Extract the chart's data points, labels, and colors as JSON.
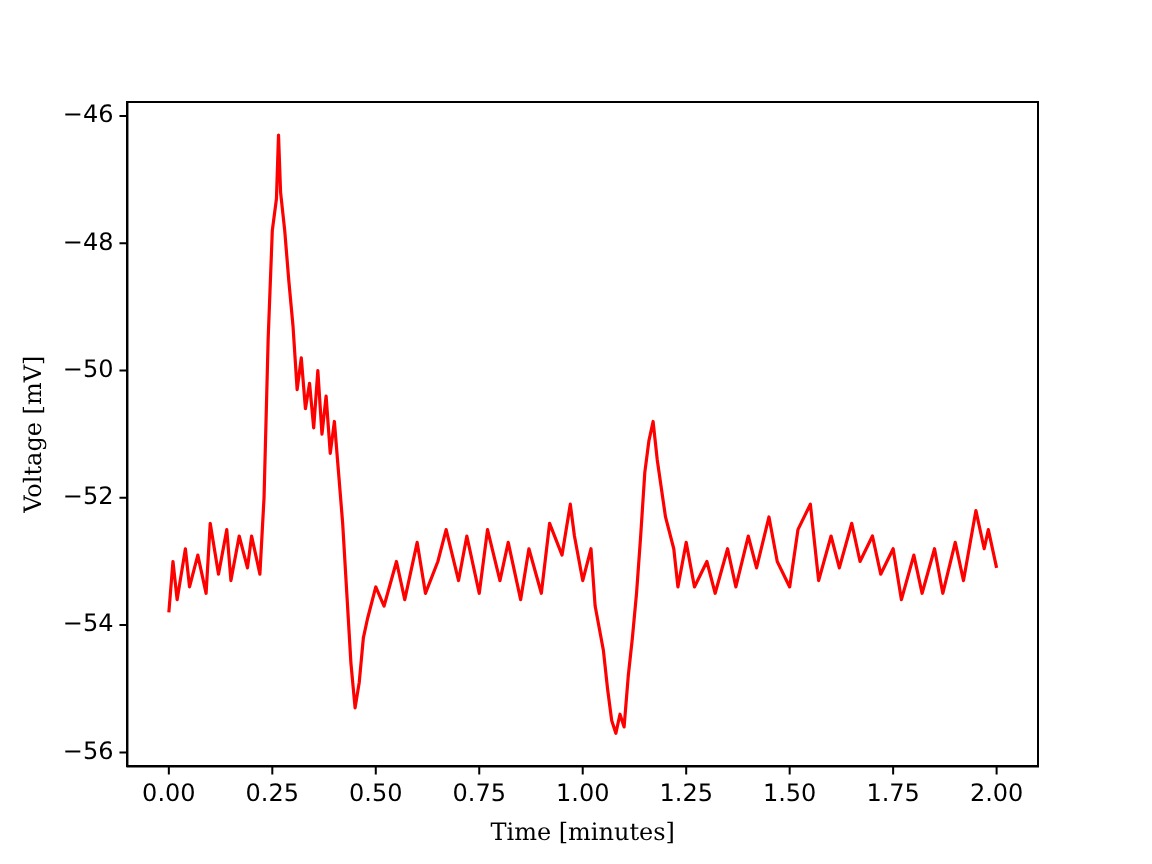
{
  "chart_data": {
    "type": "line",
    "xlabel": "Time [minutes]",
    "ylabel": "Voltage [mV]",
    "xlim": [
      -0.1,
      2.1
    ],
    "ylim": [
      -56.22,
      -45.78
    ],
    "xticks": [
      {
        "value": 0,
        "label": "0.00"
      },
      {
        "value": 0.25,
        "label": "0.25"
      },
      {
        "value": 0.5,
        "label": "0.50"
      },
      {
        "value": 0.75,
        "label": "0.75"
      },
      {
        "value": 1,
        "label": "1.00"
      },
      {
        "value": 1.25,
        "label": "1.25"
      },
      {
        "value": 1.5,
        "label": "1.50"
      },
      {
        "value": 1.75,
        "label": "1.75"
      },
      {
        "value": 2,
        "label": "2.00"
      }
    ],
    "yticks": [
      {
        "value": -56,
        "label": "−56"
      },
      {
        "value": -54,
        "label": "−54"
      },
      {
        "value": -52,
        "label": "−52"
      },
      {
        "value": -50,
        "label": "−50"
      },
      {
        "value": -48,
        "label": "−48"
      },
      {
        "value": -46,
        "label": "−46"
      }
    ],
    "grid": false,
    "legend": false,
    "marker": "none",
    "line_style": "solid",
    "series": [
      {
        "color": "#ff0000",
        "x": [
          0,
          0.01,
          0.02,
          0.04,
          0.05,
          0.07,
          0.09,
          0.1,
          0.12,
          0.14,
          0.15,
          0.17,
          0.19,
          0.2,
          0.22,
          0.23,
          0.24,
          0.25,
          0.26,
          0.265,
          0.27,
          0.28,
          0.29,
          0.3,
          0.31,
          0.32,
          0.33,
          0.34,
          0.35,
          0.36,
          0.37,
          0.38,
          0.39,
          0.4,
          0.41,
          0.42,
          0.43,
          0.44,
          0.45,
          0.46,
          0.47,
          0.48,
          0.5,
          0.52,
          0.55,
          0.57,
          0.6,
          0.62,
          0.65,
          0.67,
          0.7,
          0.72,
          0.75,
          0.77,
          0.8,
          0.82,
          0.85,
          0.87,
          0.9,
          0.92,
          0.95,
          0.97,
          0.98,
          1.0,
          1.02,
          1.03,
          1.05,
          1.06,
          1.07,
          1.08,
          1.09,
          1.1,
          1.11,
          1.12,
          1.13,
          1.14,
          1.15,
          1.16,
          1.17,
          1.18,
          1.2,
          1.22,
          1.23,
          1.25,
          1.27,
          1.3,
          1.32,
          1.35,
          1.37,
          1.4,
          1.42,
          1.45,
          1.47,
          1.5,
          1.52,
          1.55,
          1.57,
          1.6,
          1.62,
          1.65,
          1.67,
          1.7,
          1.72,
          1.75,
          1.77,
          1.8,
          1.82,
          1.85,
          1.87,
          1.9,
          1.92,
          1.95,
          1.97,
          1.98,
          2.0
        ],
        "values": [
          -53.8,
          -53.0,
          -53.6,
          -52.8,
          -53.4,
          -52.9,
          -53.5,
          -52.4,
          -53.2,
          -52.5,
          -53.3,
          -52.6,
          -53.1,
          -52.6,
          -53.2,
          -52.0,
          -49.5,
          -47.8,
          -47.3,
          -46.3,
          -47.2,
          -47.8,
          -48.6,
          -49.3,
          -50.3,
          -49.8,
          -50.6,
          -50.2,
          -50.9,
          -50.0,
          -51.0,
          -50.4,
          -51.3,
          -50.8,
          -51.6,
          -52.4,
          -53.5,
          -54.6,
          -55.3,
          -54.9,
          -54.2,
          -53.9,
          -53.4,
          -53.7,
          -53.0,
          -53.6,
          -52.7,
          -53.5,
          -53.0,
          -52.5,
          -53.3,
          -52.6,
          -53.5,
          -52.5,
          -53.3,
          -52.7,
          -53.6,
          -52.8,
          -53.5,
          -52.4,
          -52.9,
          -52.1,
          -52.6,
          -53.3,
          -52.8,
          -53.7,
          -54.4,
          -55.0,
          -55.5,
          -55.7,
          -55.4,
          -55.6,
          -54.8,
          -54.2,
          -53.5,
          -52.6,
          -51.6,
          -51.1,
          -50.8,
          -51.4,
          -52.3,
          -52.8,
          -53.4,
          -52.7,
          -53.4,
          -53.0,
          -53.5,
          -52.8,
          -53.4,
          -52.6,
          -53.1,
          -52.3,
          -53.0,
          -53.4,
          -52.5,
          -52.1,
          -53.3,
          -52.6,
          -53.1,
          -52.4,
          -53.0,
          -52.6,
          -53.2,
          -52.8,
          -53.6,
          -52.9,
          -53.5,
          -52.8,
          -53.5,
          -52.7,
          -53.3,
          -52.2,
          -52.8,
          -52.5,
          -53.1
        ]
      }
    ]
  }
}
